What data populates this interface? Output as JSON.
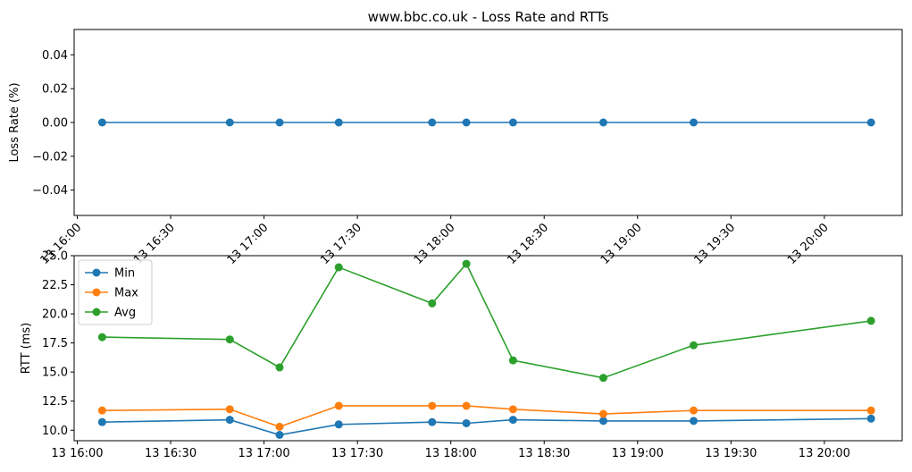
{
  "chart_data": [
    {
      "type": "line",
      "title": "www.bbc.co.uk - Loss Rate and RTTs",
      "ylabel": "Loss Rate (%)",
      "x": [
        "16:08",
        "16:49",
        "17:05",
        "17:24",
        "17:54",
        "18:05",
        "18:20",
        "18:49",
        "19:18",
        "20:15"
      ],
      "xlim": [
        "15:59",
        "20:25"
      ],
      "ylim": [
        -0.055,
        0.055
      ],
      "yticks": [
        0.04,
        0.02,
        0.0,
        -0.02,
        -0.04
      ],
      "ytick_labels": [
        "0.04",
        "0.02",
        "0.00",
        "−0.02",
        "−0.04"
      ],
      "xticks": [
        "16:00",
        "16:30",
        "17:00",
        "17:30",
        "18:00",
        "18:30",
        "19:00",
        "19:30",
        "20:00"
      ],
      "xtick_labels": [
        "13 16:00",
        "13 16:30",
        "13 17:00",
        "13 17:30",
        "13 18:00",
        "13 18:30",
        "13 19:00",
        "13 19:30",
        "13 20:00"
      ],
      "series": [
        {
          "values": [
            0,
            0,
            0,
            0,
            0,
            0,
            0,
            0,
            0,
            0
          ],
          "color": "#1f77b4"
        }
      ]
    },
    {
      "type": "line",
      "ylabel": "RTT (ms)",
      "x": [
        "16:08",
        "16:49",
        "17:05",
        "17:24",
        "17:54",
        "18:05",
        "18:20",
        "18:49",
        "19:18",
        "20:15"
      ],
      "xlim": [
        "15:59",
        "20:25"
      ],
      "ylim": [
        9.1,
        25.0
      ],
      "yticks": [
        25.0,
        22.5,
        20.0,
        17.5,
        15.0,
        12.5,
        10.0
      ],
      "ytick_labels": [
        "25.0",
        "22.5",
        "20.0",
        "17.5",
        "15.0",
        "12.5",
        "10.0"
      ],
      "xticks": [
        "16:00",
        "16:30",
        "17:00",
        "17:30",
        "18:00",
        "18:30",
        "19:00",
        "19:30",
        "20:00"
      ],
      "xtick_labels": [
        "13 16:00",
        "13 16:30",
        "13 17:00",
        "13 17:30",
        "13 18:00",
        "13 18:30",
        "13 19:00",
        "13 19:30",
        "13 20:00"
      ],
      "legend_position": "top-left",
      "series": [
        {
          "name": "Min",
          "color": "#1f77b4",
          "values": [
            10.7,
            10.9,
            9.6,
            10.5,
            10.7,
            10.6,
            10.9,
            10.8,
            10.8,
            11.0
          ]
        },
        {
          "name": "Max",
          "color": "#ff7f0e",
          "values": [
            11.7,
            11.8,
            10.3,
            12.1,
            12.1,
            12.1,
            11.8,
            11.4,
            11.7,
            11.7
          ]
        },
        {
          "name": "Avg",
          "color": "#2ca02c",
          "values": [
            18.0,
            17.8,
            15.4,
            24.0,
            20.9,
            24.3,
            16.0,
            14.5,
            17.3,
            19.4
          ]
        }
      ]
    }
  ]
}
